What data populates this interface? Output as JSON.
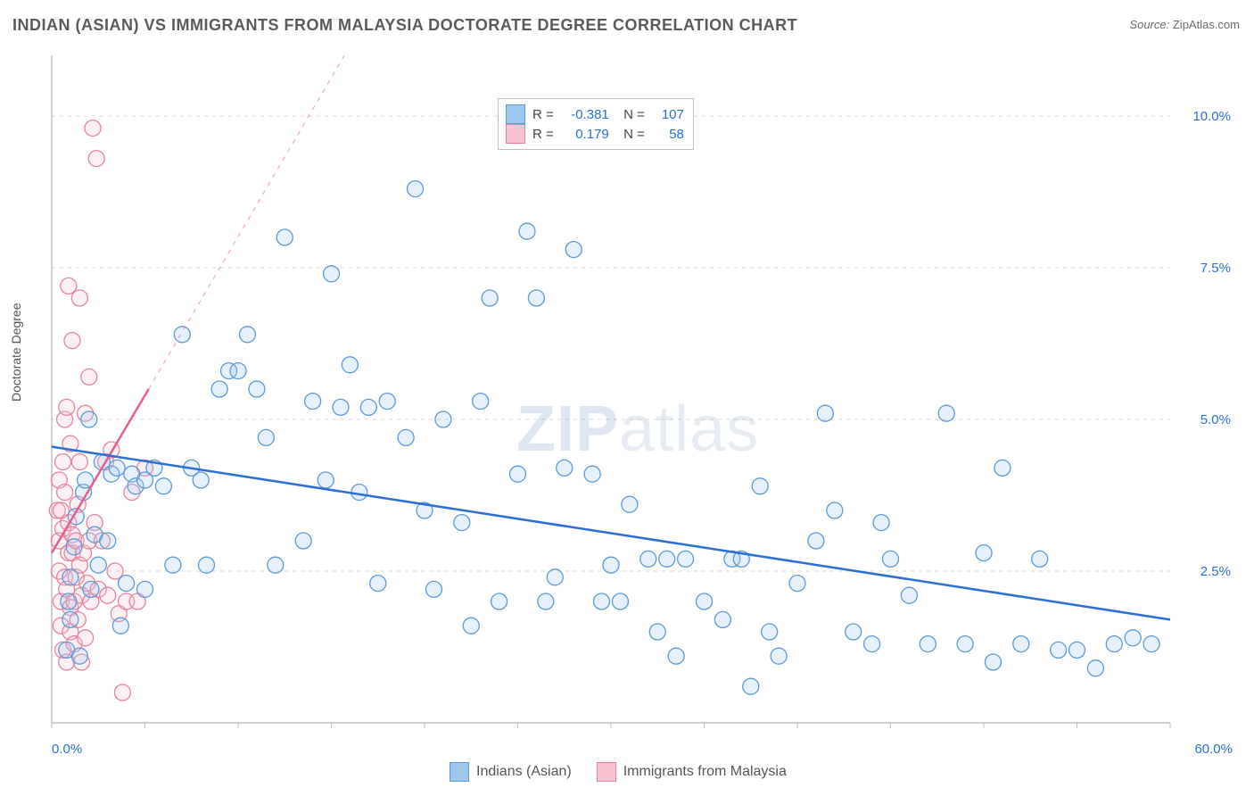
{
  "title": "INDIAN (ASIAN) VS IMMIGRANTS FROM MALAYSIA DOCTORATE DEGREE CORRELATION CHART",
  "source_label": "Source:",
  "source_value": "ZipAtlas.com",
  "ylabel": "Doctorate Degree",
  "watermark_a": "ZIP",
  "watermark_b": "atlas",
  "chart": {
    "type": "scatter",
    "xlim": [
      0,
      60
    ],
    "ylim": [
      0,
      11
    ],
    "x_start_label": "0.0%",
    "x_end_label": "60.0%",
    "y_ticks": [
      2.5,
      5.0,
      7.5,
      10.0
    ],
    "y_tick_labels": [
      "2.5%",
      "5.0%",
      "7.5%",
      "10.0%"
    ],
    "background_color": "#ffffff",
    "grid_color": "#d7d7d7",
    "axis_color": "#c0c0c0",
    "marker_stroke_width": 1.3,
    "marker_radius": 9,
    "marker_fill_opacity": 0.25,
    "trendline_width": 2.5,
    "series": [
      {
        "key": "blue",
        "name": "Indians (Asian)",
        "fill": "#9ec7ef",
        "stroke": "#5a9ad6",
        "trend_color": "#2a6fd6",
        "trend_dash": null,
        "R": "-0.381",
        "N": "107",
        "trendline": {
          "x1": 0,
          "y1": 4.55,
          "x2": 60,
          "y2": 1.7
        },
        "trend_extend": {
          "x1": 0,
          "y1": 4.55,
          "x2": 60,
          "y2": 1.7,
          "dash": "none"
        },
        "points": [
          [
            0.8,
            1.2
          ],
          [
            0.9,
            2.0
          ],
          [
            1.0,
            1.7
          ],
          [
            1.0,
            2.4
          ],
          [
            1.2,
            2.9
          ],
          [
            1.3,
            3.4
          ],
          [
            1.5,
            1.1
          ],
          [
            1.7,
            3.8
          ],
          [
            1.8,
            4.0
          ],
          [
            2.0,
            5.0
          ],
          [
            2.1,
            2.2
          ],
          [
            2.3,
            3.1
          ],
          [
            2.5,
            2.6
          ],
          [
            2.7,
            4.3
          ],
          [
            3.0,
            3.0
          ],
          [
            3.2,
            4.1
          ],
          [
            3.5,
            4.2
          ],
          [
            3.7,
            1.6
          ],
          [
            4.0,
            2.3
          ],
          [
            4.3,
            4.1
          ],
          [
            4.5,
            3.9
          ],
          [
            5.0,
            4.0
          ],
          [
            5.0,
            2.2
          ],
          [
            5.5,
            4.2
          ],
          [
            6.0,
            3.9
          ],
          [
            6.5,
            2.6
          ],
          [
            7.0,
            6.4
          ],
          [
            7.5,
            4.2
          ],
          [
            8.0,
            4.0
          ],
          [
            8.3,
            2.6
          ],
          [
            9.0,
            5.5
          ],
          [
            9.5,
            5.8
          ],
          [
            10.0,
            5.8
          ],
          [
            10.5,
            6.4
          ],
          [
            11.0,
            5.5
          ],
          [
            11.5,
            4.7
          ],
          [
            12.0,
            2.6
          ],
          [
            12.5,
            8.0
          ],
          [
            13.5,
            3.0
          ],
          [
            14.0,
            5.3
          ],
          [
            14.7,
            4.0
          ],
          [
            15.0,
            7.4
          ],
          [
            15.5,
            5.2
          ],
          [
            16.0,
            5.9
          ],
          [
            16.5,
            3.8
          ],
          [
            17.0,
            5.2
          ],
          [
            17.5,
            2.3
          ],
          [
            18.0,
            5.3
          ],
          [
            19.0,
            4.7
          ],
          [
            19.5,
            8.8
          ],
          [
            20.0,
            3.5
          ],
          [
            20.5,
            2.2
          ],
          [
            21.0,
            5.0
          ],
          [
            22.0,
            3.3
          ],
          [
            22.5,
            1.6
          ],
          [
            23.0,
            5.3
          ],
          [
            23.5,
            7.0
          ],
          [
            24.0,
            2.0
          ],
          [
            25.0,
            4.1
          ],
          [
            25.5,
            8.1
          ],
          [
            26.0,
            7.0
          ],
          [
            26.5,
            2.0
          ],
          [
            27.0,
            2.4
          ],
          [
            27.5,
            4.2
          ],
          [
            28.0,
            7.8
          ],
          [
            29.0,
            4.1
          ],
          [
            29.5,
            2.0
          ],
          [
            30.0,
            2.6
          ],
          [
            30.5,
            2.0
          ],
          [
            31.0,
            3.6
          ],
          [
            32.0,
            2.7
          ],
          [
            32.5,
            1.5
          ],
          [
            33.0,
            2.7
          ],
          [
            33.5,
            1.1
          ],
          [
            34.0,
            2.7
          ],
          [
            35.0,
            2.0
          ],
          [
            36.0,
            1.7
          ],
          [
            36.5,
            2.7
          ],
          [
            37.0,
            2.7
          ],
          [
            37.5,
            0.6
          ],
          [
            38.0,
            3.9
          ],
          [
            38.5,
            1.5
          ],
          [
            39.0,
            1.1
          ],
          [
            40.0,
            2.3
          ],
          [
            41.0,
            3.0
          ],
          [
            41.5,
            5.1
          ],
          [
            42.0,
            3.5
          ],
          [
            43.0,
            1.5
          ],
          [
            44.0,
            1.3
          ],
          [
            44.5,
            3.3
          ],
          [
            45.0,
            2.7
          ],
          [
            46.0,
            2.1
          ],
          [
            47.0,
            1.3
          ],
          [
            48.0,
            5.1
          ],
          [
            49.0,
            1.3
          ],
          [
            50.0,
            2.8
          ],
          [
            50.5,
            1.0
          ],
          [
            51.0,
            4.2
          ],
          [
            52.0,
            1.3
          ],
          [
            53.0,
            2.7
          ],
          [
            54.0,
            1.2
          ],
          [
            55.0,
            1.2
          ],
          [
            56.0,
            0.9
          ],
          [
            57.0,
            1.3
          ],
          [
            58.0,
            1.4
          ],
          [
            59.0,
            1.3
          ]
        ]
      },
      {
        "key": "pink",
        "name": "Immigrants from Malaysia",
        "fill": "#f7c3d0",
        "stroke": "#e583a1",
        "trend_color": "#e95d8e",
        "R": "0.179",
        "N": "58",
        "trendline": {
          "x1": 0,
          "y1": 2.8,
          "x2": 5.2,
          "y2": 5.5
        },
        "trend_extend": {
          "x1": 5.2,
          "y1": 5.5,
          "x2": 22,
          "y2": 14.3,
          "dash": "5,6"
        },
        "points": [
          [
            0.3,
            3.5
          ],
          [
            0.4,
            3.0
          ],
          [
            0.4,
            2.5
          ],
          [
            0.4,
            4.0
          ],
          [
            0.5,
            3.5
          ],
          [
            0.5,
            2.0
          ],
          [
            0.5,
            1.6
          ],
          [
            0.6,
            4.3
          ],
          [
            0.6,
            1.2
          ],
          [
            0.6,
            3.2
          ],
          [
            0.7,
            5.0
          ],
          [
            0.7,
            3.8
          ],
          [
            0.7,
            2.4
          ],
          [
            0.8,
            2.2
          ],
          [
            0.8,
            1.0
          ],
          [
            0.8,
            5.2
          ],
          [
            0.9,
            3.3
          ],
          [
            0.9,
            2.8
          ],
          [
            0.9,
            7.2
          ],
          [
            1.0,
            4.6
          ],
          [
            1.0,
            1.5
          ],
          [
            1.0,
            1.9
          ],
          [
            1.1,
            2.8
          ],
          [
            1.1,
            3.1
          ],
          [
            1.1,
            6.3
          ],
          [
            1.2,
            2.0
          ],
          [
            1.2,
            1.3
          ],
          [
            1.3,
            2.4
          ],
          [
            1.3,
            3.0
          ],
          [
            1.4,
            1.7
          ],
          [
            1.4,
            3.6
          ],
          [
            1.5,
            4.3
          ],
          [
            1.5,
            2.6
          ],
          [
            1.5,
            7.0
          ],
          [
            1.6,
            2.1
          ],
          [
            1.6,
            1.0
          ],
          [
            1.7,
            2.8
          ],
          [
            1.8,
            5.1
          ],
          [
            1.8,
            1.4
          ],
          [
            1.9,
            2.3
          ],
          [
            2.0,
            3.0
          ],
          [
            2.0,
            5.7
          ],
          [
            2.1,
            2.0
          ],
          [
            2.2,
            9.8
          ],
          [
            2.3,
            3.3
          ],
          [
            2.4,
            9.3
          ],
          [
            2.5,
            2.2
          ],
          [
            2.7,
            3.0
          ],
          [
            2.9,
            4.3
          ],
          [
            3.0,
            2.1
          ],
          [
            3.2,
            4.5
          ],
          [
            3.4,
            2.5
          ],
          [
            3.6,
            1.8
          ],
          [
            3.8,
            0.5
          ],
          [
            4.0,
            2.0
          ],
          [
            4.3,
            3.8
          ],
          [
            4.6,
            2.0
          ],
          [
            5.0,
            4.2
          ]
        ]
      }
    ]
  },
  "legend_bottom": {
    "a": "Indians (Asian)",
    "b": "Immigrants from Malaysia"
  }
}
